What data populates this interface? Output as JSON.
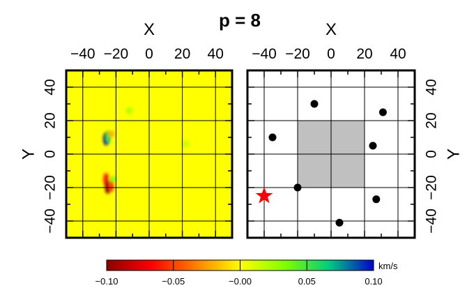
{
  "chart_data": {
    "title": "p = 8",
    "panels": [
      {
        "type": "heatmap",
        "xlabel": "X",
        "ylabel": "Y",
        "xlim": [
          -50,
          50
        ],
        "ylim": [
          -50,
          50
        ],
        "xticks": [
          -40,
          -20,
          0,
          20,
          40
        ],
        "yticks": [
          -40,
          -20,
          0,
          20,
          40
        ],
        "x_tick_labels": [
          "−40",
          "−20",
          "0",
          "20",
          "40"
        ],
        "y_tick_labels": [
          "−40",
          "−20",
          "0",
          "20",
          "40"
        ],
        "grid": true,
        "background_value": 0.0,
        "anomalies": [
          {
            "x": -26,
            "y": 9,
            "value": 0.1
          },
          {
            "x": -25,
            "y": 10,
            "value": 0.05
          },
          {
            "x": -26,
            "y": -15,
            "value": -0.06
          },
          {
            "x": -25,
            "y": -20,
            "value": -0.1
          },
          {
            "x": -23,
            "y": -19,
            "value": -0.05
          },
          {
            "x": -22,
            "y": -15,
            "value": 0.03
          },
          {
            "x": -23,
            "y": 12,
            "value": -0.02
          },
          {
            "x": -12,
            "y": 26,
            "value": 0.02
          },
          {
            "x": 22,
            "y": 6,
            "value": 0.015
          }
        ]
      },
      {
        "type": "scatter",
        "xlabel": "X",
        "ylabel": "Y",
        "xlim": [
          -50,
          50
        ],
        "ylim": [
          -50,
          50
        ],
        "xticks": [
          -40,
          -20,
          0,
          20,
          40
        ],
        "yticks": [
          -40,
          -20,
          0,
          20,
          40
        ],
        "x_tick_labels": [
          "−40",
          "−20",
          "0",
          "20",
          "40"
        ],
        "y_tick_labels": [
          "−40",
          "−20",
          "0",
          "20",
          "40"
        ],
        "grid": true,
        "shaded_region": {
          "x": [
            -20,
            20
          ],
          "y": [
            -20,
            20
          ]
        },
        "stations": [
          {
            "x": -35,
            "y": 10
          },
          {
            "x": -10,
            "y": 30
          },
          {
            "x": 31,
            "y": 25
          },
          {
            "x": 25,
            "y": 5
          },
          {
            "x": -20,
            "y": -20
          },
          {
            "x": 27,
            "y": -27
          },
          {
            "x": 5,
            "y": -41
          }
        ],
        "star": {
          "x": -40,
          "y": -25
        }
      }
    ],
    "colorbar": {
      "min": -0.1,
      "max": 0.1,
      "ticks": [
        -0.1,
        -0.05,
        0.0,
        0.05,
        0.1
      ],
      "tick_labels": [
        "−0.10",
        "−0.05",
        "−0.00",
        "0.05",
        "0.10"
      ],
      "unit": "km/s",
      "colormap": [
        "#8b0000",
        "#ff0000",
        "#ff7f00",
        "#ffff00",
        "#80ff00",
        "#00cc80",
        "#0000cd"
      ]
    }
  },
  "colors": {
    "grid": "#000000",
    "shade": "#c0c0c0",
    "station": "#000000",
    "star": "#ff0000"
  }
}
